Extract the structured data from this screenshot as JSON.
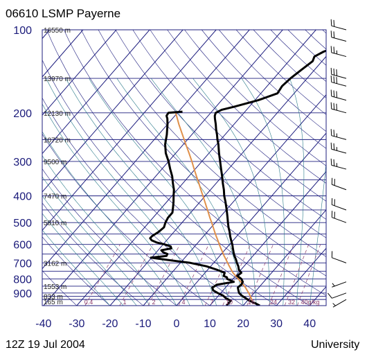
{
  "header": {
    "title": "06610 LSMP Payerne"
  },
  "footer": {
    "left": "12Z 19 Jul 2004",
    "right": "University"
  },
  "colors": {
    "frame": "#1c1c7e",
    "isobar": "#1c1c7e",
    "isotherm": "#1c1c7e",
    "dry_adiabat": "#1c1c7e",
    "moist_adiabat": "#2a7a8a",
    "mixing_ratio": "#8a3a6a",
    "sounding": "#000000",
    "parcel": "#e0904a"
  },
  "chart_data": {
    "type": "line",
    "title": "06610 LSMP Payerne",
    "xlabel": "",
    "ylabel": "",
    "pressure_axis": {
      "scale": "log",
      "range_hPa": [
        1000,
        100
      ],
      "tick_labels": [
        "100",
        "200",
        "300",
        "400",
        "500",
        "600",
        "700",
        "800",
        "900"
      ]
    },
    "temperature_axis": {
      "range_C": [
        -40,
        40
      ],
      "tick_labels": [
        "-40",
        "-30",
        "-20",
        "-10",
        "0",
        "10",
        "20",
        "30",
        "40"
      ]
    },
    "isobars_hPa": [
      100,
      150,
      200,
      250,
      300,
      350,
      400,
      450,
      500,
      550,
      600,
      650,
      700,
      750,
      800,
      850,
      900,
      925,
      950,
      1000
    ],
    "height_labels": [
      {
        "p": 100,
        "text": "16550 m"
      },
      {
        "p": 150,
        "text": "13970 m"
      },
      {
        "p": 200,
        "text": "12130 m"
      },
      {
        "p": 250,
        "text": "10720 m"
      },
      {
        "p": 300,
        "text": "9500 m"
      },
      {
        "p": 400,
        "text": "7470 m"
      },
      {
        "p": 500,
        "text": "5810 m"
      },
      {
        "p": 700,
        "text": "3162 m"
      },
      {
        "p": 850,
        "text": "1553 m"
      },
      {
        "p": 925,
        "text": "833 m"
      },
      {
        "p": 1000,
        "text": "165 m"
      }
    ],
    "mixing_ratio_labels": [
      "0.4",
      "1",
      "2",
      "4",
      "7",
      "10",
      "16",
      "24",
      "32",
      "40g/kg"
    ],
    "series": [
      {
        "name": "",
        "role": "temperature",
        "points": [
          [
            1000,
            25
          ],
          [
            980,
            23
          ],
          [
            960,
            20.6
          ],
          [
            940,
            18.9
          ],
          [
            920,
            17
          ],
          [
            900,
            15.5
          ],
          [
            880,
            14.6
          ],
          [
            860,
            13.7
          ],
          [
            850,
            13.8
          ],
          [
            840,
            14
          ],
          [
            820,
            13.7
          ],
          [
            800,
            12.5
          ],
          [
            780,
            10.5
          ],
          [
            760,
            10.9
          ],
          [
            740,
            9.3
          ],
          [
            720,
            8.3
          ],
          [
            700,
            7
          ],
          [
            680,
            5.8
          ],
          [
            660,
            4.4
          ],
          [
            640,
            3.2
          ],
          [
            620,
            2
          ],
          [
            600,
            0.8
          ],
          [
            580,
            -0.6
          ],
          [
            560,
            -2
          ],
          [
            540,
            -3.3
          ],
          [
            520,
            -4.8
          ],
          [
            500,
            -6.2
          ],
          [
            480,
            -7.6
          ],
          [
            460,
            -9.1
          ],
          [
            440,
            -10.7
          ],
          [
            420,
            -12.4
          ],
          [
            400,
            -14.3
          ],
          [
            380,
            -16
          ],
          [
            360,
            -18
          ],
          [
            340,
            -20
          ],
          [
            320,
            -22.2
          ],
          [
            300,
            -24.5
          ],
          [
            280,
            -27
          ],
          [
            260,
            -29.5
          ],
          [
            250,
            -31
          ],
          [
            240,
            -32.4
          ],
          [
            230,
            -34
          ],
          [
            220,
            -35.5
          ],
          [
            210,
            -37.2
          ],
          [
            205,
            -38
          ],
          [
            200,
            -38.5
          ],
          [
            195,
            -37.5
          ],
          [
            190,
            -34.5
          ],
          [
            180,
            -29
          ],
          [
            170,
            -25
          ],
          [
            160,
            -25.5
          ],
          [
            150,
            -25
          ],
          [
            140,
            -24
          ],
          [
            130,
            -22.8
          ],
          [
            125,
            -23.5
          ],
          [
            120,
            -22
          ],
          [
            115,
            -19
          ],
          [
            110,
            -18.5
          ],
          [
            106,
            -16.2
          ],
          [
            102,
            -16.5
          ],
          [
            100,
            -15.2
          ]
        ]
      },
      {
        "name": "",
        "role": "dewpoint",
        "points": [
          [
            1000,
            15
          ],
          [
            980,
            15
          ],
          [
            960,
            15
          ],
          [
            940,
            12.9
          ],
          [
            920,
            11.4
          ],
          [
            900,
            9.1
          ],
          [
            880,
            7
          ],
          [
            860,
            6
          ],
          [
            850,
            6.4
          ],
          [
            840,
            6.6
          ],
          [
            820,
            11
          ],
          [
            800,
            8.2
          ],
          [
            790,
            7.8
          ],
          [
            780,
            6.4
          ],
          [
            760,
            5.9
          ],
          [
            740,
            2.6
          ],
          [
            720,
            -1.3
          ],
          [
            700,
            -7
          ],
          [
            680,
            -16
          ],
          [
            670,
            -20.2
          ],
          [
            660,
            -16
          ],
          [
            650,
            -16.2
          ],
          [
            640,
            -18
          ],
          [
            630,
            -19
          ],
          [
            620,
            -16.5
          ],
          [
            610,
            -17.2
          ],
          [
            600,
            -19.5
          ],
          [
            590,
            -22.5
          ],
          [
            580,
            -24.5
          ],
          [
            570,
            -25.5
          ],
          [
            560,
            -25.5
          ],
          [
            540,
            -24.6
          ],
          [
            520,
            -24.2
          ],
          [
            500,
            -25
          ],
          [
            480,
            -25.5
          ],
          [
            460,
            -25.5
          ],
          [
            440,
            -26.7
          ],
          [
            420,
            -28
          ],
          [
            400,
            -29.5
          ],
          [
            380,
            -31
          ],
          [
            360,
            -33
          ],
          [
            340,
            -35
          ],
          [
            320,
            -37.5
          ],
          [
            300,
            -40
          ],
          [
            280,
            -43
          ],
          [
            260,
            -45.5
          ],
          [
            240,
            -47.5
          ],
          [
            220,
            -50
          ],
          [
            210,
            -51.5
          ],
          [
            205,
            -52.5
          ],
          [
            200,
            -52.7
          ],
          [
            198,
            -48.8
          ]
        ]
      },
      {
        "name": "",
        "role": "parcel",
        "points": [
          [
            960,
            21.4
          ],
          [
            940,
            20.5
          ],
          [
            920,
            19.5
          ],
          [
            900,
            18.4
          ],
          [
            880,
            17.2
          ],
          [
            860,
            16
          ],
          [
            840,
            14.6
          ],
          [
            820,
            13.1
          ],
          [
            800,
            11.6
          ],
          [
            780,
            10
          ],
          [
            760,
            8.4
          ],
          [
            740,
            7
          ],
          [
            720,
            5.6
          ],
          [
            700,
            4.2
          ],
          [
            680,
            2.8
          ],
          [
            660,
            1.3
          ],
          [
            640,
            -0.1
          ],
          [
            620,
            -1.6
          ],
          [
            600,
            -3.1
          ],
          [
            580,
            -4.6
          ],
          [
            560,
            -6.2
          ],
          [
            540,
            -7.8
          ],
          [
            520,
            -9.4
          ],
          [
            500,
            -11.1
          ],
          [
            480,
            -12.9
          ],
          [
            460,
            -14.7
          ],
          [
            440,
            -16.6
          ],
          [
            420,
            -18.6
          ],
          [
            400,
            -20.7
          ],
          [
            380,
            -22.9
          ],
          [
            360,
            -25.2
          ],
          [
            340,
            -27.7
          ],
          [
            320,
            -30.3
          ],
          [
            300,
            -33
          ],
          [
            280,
            -36
          ],
          [
            260,
            -39.3
          ],
          [
            240,
            -42.8
          ],
          [
            220,
            -46.6
          ],
          [
            200,
            -50.5
          ]
        ]
      }
    ],
    "wind_barbs": [
      {
        "p": 950,
        "dir": 240,
        "kt": 5
      },
      {
        "p": 900,
        "dir": 250,
        "kt": 8
      },
      {
        "p": 820,
        "dir": 250,
        "kt": 5
      },
      {
        "p": 700,
        "dir": 290,
        "kt": 8
      },
      {
        "p": 500,
        "dir": 290,
        "kt": 20
      },
      {
        "p": 450,
        "dir": 290,
        "kt": 20
      },
      {
        "p": 380,
        "dir": 290,
        "kt": 20
      },
      {
        "p": 320,
        "dir": 285,
        "kt": 25
      },
      {
        "p": 280,
        "dir": 285,
        "kt": 25
      },
      {
        "p": 250,
        "dir": 285,
        "kt": 25
      },
      {
        "p": 200,
        "dir": 285,
        "kt": 30
      },
      {
        "p": 180,
        "dir": 285,
        "kt": 30
      },
      {
        "p": 160,
        "dir": 285,
        "kt": 30
      },
      {
        "p": 150,
        "dir": 285,
        "kt": 30
      },
      {
        "p": 125,
        "dir": 285,
        "kt": 25
      },
      {
        "p": 110,
        "dir": 285,
        "kt": 20
      },
      {
        "p": 100,
        "dir": 285,
        "kt": 20
      }
    ]
  }
}
